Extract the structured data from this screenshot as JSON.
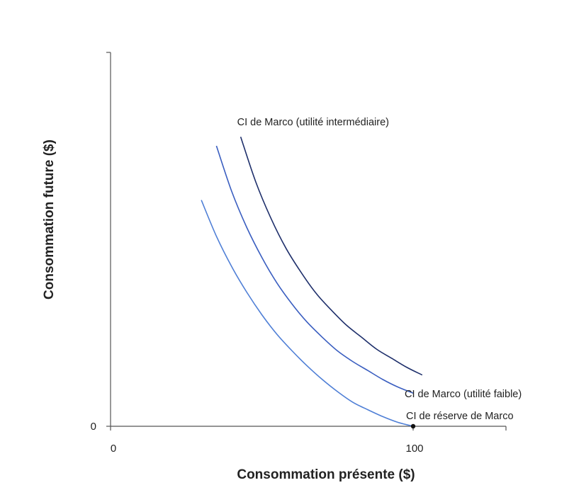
{
  "chart_data": {
    "type": "line",
    "xlabel": "Consommation présente ($)",
    "ylabel": "Consommation future ($)",
    "xlim": [
      0,
      131
    ],
    "ylim": [
      0,
      124
    ],
    "x_ticks": [
      {
        "value": 0,
        "label": "0"
      },
      {
        "value": 100,
        "label": "100"
      }
    ],
    "y_ticks": [
      {
        "value": 0,
        "label": "0"
      }
    ],
    "grid": false,
    "series": [
      {
        "name": "CI de réserve de Marco",
        "color": "#4f7fd6",
        "x": [
          30,
          35,
          40,
          45,
          50,
          55,
          60,
          65,
          70,
          75,
          80,
          85,
          90,
          95,
          100
        ],
        "y": [
          75,
          63,
          53,
          44.5,
          37,
          30.5,
          25,
          20,
          15.5,
          11.5,
          8,
          5.5,
          3.2,
          1.3,
          0
        ]
      },
      {
        "name": "CI de Marco (utilité faible)",
        "color": "#3a5ec0",
        "x": [
          35,
          40,
          45,
          50,
          55,
          60,
          65,
          70,
          75,
          80,
          85,
          90,
          95,
          100
        ],
        "y": [
          93,
          78,
          66,
          56,
          47.5,
          40.5,
          34.5,
          29.5,
          25,
          21.5,
          18.5,
          15.5,
          13,
          11
        ]
      },
      {
        "name": "CI de Marco (utilité intermédiaire)",
        "color": "#1e2f6b",
        "x": [
          43,
          48,
          53,
          58,
          63,
          68,
          73,
          78,
          83,
          88,
          93,
          98,
          103
        ],
        "y": [
          96,
          81,
          69,
          59,
          51,
          44,
          38.5,
          33.5,
          29.5,
          25.5,
          22.5,
          19.5,
          17
        ]
      }
    ],
    "points": [
      {
        "x": 100,
        "y": 0,
        "color": "#111111"
      }
    ]
  }
}
